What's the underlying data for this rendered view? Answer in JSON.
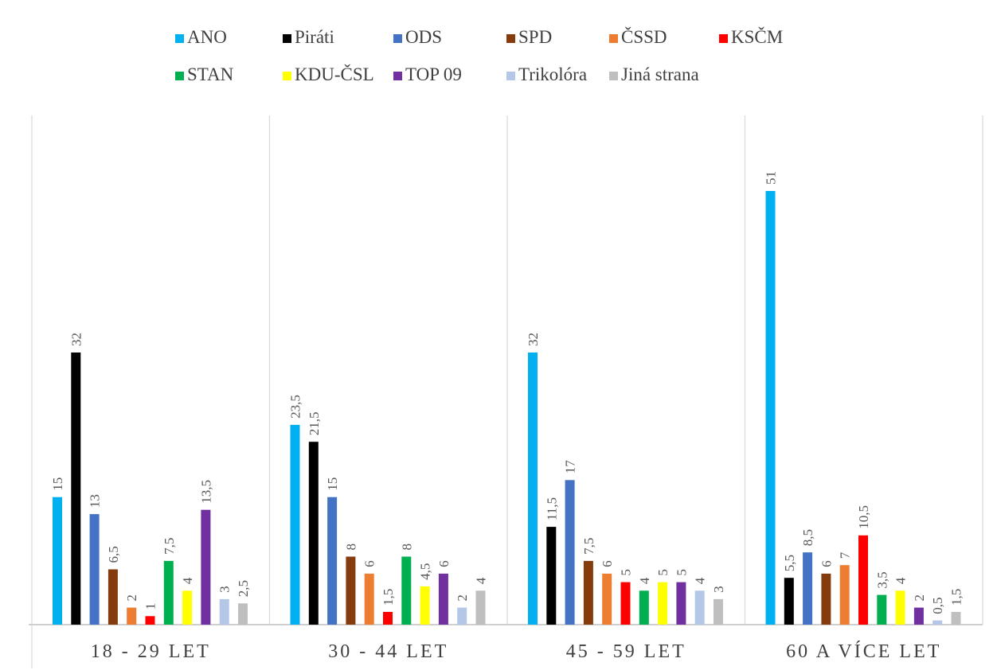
{
  "chart_data": {
    "type": "bar",
    "categories": [
      "18 - 29 LET",
      "30 - 44 LET",
      "45 - 59 LET",
      "60 A VÍCE LET"
    ],
    "series": [
      {
        "name": "ANO",
        "color": "#00b0f0",
        "values": [
          15,
          23.5,
          32,
          51
        ],
        "labels": [
          "15",
          "23,5",
          "32",
          "51"
        ]
      },
      {
        "name": "Piráti",
        "color": "#000000",
        "values": [
          32,
          21.5,
          11.5,
          5.5
        ],
        "labels": [
          "32",
          "21,5",
          "11,5",
          "5,5"
        ]
      },
      {
        "name": "ODS",
        "color": "#4472c4",
        "values": [
          13,
          15,
          17,
          8.5
        ],
        "labels": [
          "13",
          "15",
          "17",
          "8,5"
        ]
      },
      {
        "name": "SPD",
        "color": "#843c0c",
        "values": [
          6.5,
          8,
          7.5,
          6
        ],
        "labels": [
          "6,5",
          "8",
          "7,5",
          "6"
        ]
      },
      {
        "name": "ČSSD",
        "color": "#ed7d31",
        "values": [
          2,
          6,
          6,
          7
        ],
        "labels": [
          "2",
          "6",
          "6",
          "7"
        ]
      },
      {
        "name": "KSČM",
        "color": "#ff0000",
        "values": [
          1,
          1.5,
          5,
          10.5
        ],
        "labels": [
          "1",
          "1,5",
          "5",
          "10,5"
        ]
      },
      {
        "name": "STAN",
        "color": "#00b050",
        "values": [
          7.5,
          8,
          4,
          3.5
        ],
        "labels": [
          "7,5",
          "8",
          "4",
          "3,5"
        ]
      },
      {
        "name": "KDU-ČSL",
        "color": "#ffff00",
        "values": [
          4,
          4.5,
          5,
          4
        ],
        "labels": [
          "4",
          "4,5",
          "5",
          "4"
        ]
      },
      {
        "name": "TOP 09",
        "color": "#7030a0",
        "values": [
          13.5,
          6,
          5,
          2
        ],
        "labels": [
          "13,5",
          "6",
          "5",
          "2"
        ]
      },
      {
        "name": "Trikolóra",
        "color": "#b4c7e7",
        "values": [
          3,
          2,
          4,
          0.5
        ],
        "labels": [
          "3",
          "2",
          "4",
          "0,5"
        ]
      },
      {
        "name": "Jiná strana",
        "color": "#bfbfbf",
        "values": [
          2.5,
          4,
          3,
          1.5
        ],
        "labels": [
          "2,5",
          "4",
          "3",
          "1,5"
        ]
      }
    ],
    "ylim": [
      0,
      56
    ],
    "legend_position": "top",
    "grid": false,
    "category_separators": true
  }
}
